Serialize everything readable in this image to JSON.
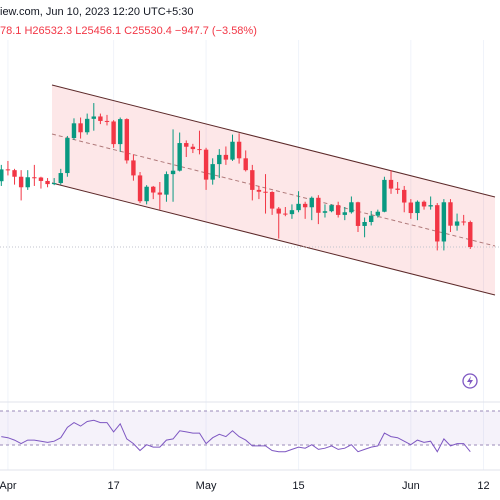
{
  "chart_data": {
    "type": "candlestick",
    "header": "iew.com, Jun 10, 2023 12:20 UTC+5:30",
    "ohlc_legend": "78.1 H26532.3 L25456.1 C25530.4 −947.7 (−3.58%)",
    "up_color": "#089981",
    "down_color": "#f23645",
    "x": [
      1,
      2,
      3,
      4,
      5,
      6,
      7,
      8,
      9,
      10,
      11,
      12,
      13,
      14,
      15,
      16,
      17,
      18,
      19,
      20,
      21,
      22,
      23,
      24,
      25,
      26,
      27,
      28,
      29,
      30,
      31,
      32,
      33,
      34,
      35,
      36,
      37,
      38,
      39,
      40,
      41,
      42,
      43,
      44,
      45,
      46,
      47,
      48,
      49,
      50,
      51,
      52,
      53,
      54,
      55,
      56,
      57,
      58,
      59,
      60,
      61,
      62,
      63,
      64,
      65,
      66,
      67,
      68,
      69,
      70,
      71,
      72
    ],
    "candles": [
      [
        28030,
        28650,
        27850,
        28480
      ],
      [
        28480,
        28800,
        28250,
        28450
      ],
      [
        28450,
        28500,
        27900,
        28200
      ],
      [
        28200,
        28450,
        27300,
        27800
      ],
      [
        27800,
        28450,
        27700,
        28180
      ],
      [
        28180,
        28650,
        27850,
        28170
      ],
      [
        28170,
        28200,
        27750,
        28040
      ],
      [
        28040,
        28150,
        27800,
        27920
      ],
      [
        27920,
        28150,
        27880,
        27960
      ],
      [
        27960,
        28500,
        27900,
        28340
      ],
      [
        28340,
        29750,
        28200,
        29670
      ],
      [
        29670,
        30420,
        29600,
        30230
      ],
      [
        30230,
        30450,
        29650,
        29890
      ],
      [
        29890,
        30600,
        29800,
        30400
      ],
      [
        30400,
        31000,
        29950,
        30490
      ],
      [
        30490,
        30600,
        30200,
        30320
      ],
      [
        30320,
        30550,
        30150,
        30300
      ],
      [
        30300,
        30350,
        29300,
        29440
      ],
      [
        29440,
        30450,
        29150,
        30390
      ],
      [
        30390,
        30420,
        28700,
        28820
      ],
      [
        28820,
        29050,
        28050,
        28250
      ],
      [
        28250,
        28380,
        27200,
        27270
      ],
      [
        27270,
        27880,
        27150,
        27820
      ],
      [
        27820,
        27850,
        27350,
        27600
      ],
      [
        27600,
        28000,
        26950,
        27520
      ],
      [
        27520,
        28400,
        27250,
        28300
      ],
      [
        28300,
        30000,
        27250,
        28430
      ],
      [
        28430,
        29880,
        28400,
        29480
      ],
      [
        29480,
        29580,
        28950,
        29340
      ],
      [
        29340,
        29450,
        29100,
        29250
      ],
      [
        29250,
        29950,
        29050,
        29230
      ],
      [
        29230,
        29300,
        27700,
        28090
      ],
      [
        28090,
        28900,
        27900,
        28680
      ],
      [
        28680,
        29250,
        28150,
        29030
      ],
      [
        29030,
        29350,
        28650,
        28850
      ],
      [
        28850,
        29800,
        28800,
        29530
      ],
      [
        29530,
        29850,
        28700,
        28900
      ],
      [
        28900,
        29200,
        28400,
        28450
      ],
      [
        28450,
        28650,
        27300,
        27700
      ],
      [
        27700,
        27850,
        27350,
        27630
      ],
      [
        27630,
        28300,
        26800,
        27620
      ],
      [
        27620,
        27650,
        26750,
        26990
      ],
      [
        26990,
        27050,
        25850,
        26800
      ],
      [
        26800,
        27050,
        26700,
        26780
      ],
      [
        26780,
        27150,
        26600,
        26930
      ],
      [
        26930,
        27650,
        26850,
        27170
      ],
      [
        27170,
        27250,
        26600,
        27040
      ],
      [
        27040,
        27450,
        26550,
        27400
      ],
      [
        27400,
        27500,
        26400,
        26830
      ],
      [
        26830,
        27150,
        26650,
        26890
      ],
      [
        26890,
        27150,
        26850,
        27120
      ],
      [
        27120,
        27250,
        26650,
        26750
      ],
      [
        26750,
        27050,
        26550,
        26850
      ],
      [
        26850,
        27450,
        26800,
        27230
      ],
      [
        27230,
        27250,
        26100,
        26330
      ],
      [
        26330,
        26650,
        25900,
        26480
      ],
      [
        26480,
        26900,
        26350,
        26720
      ],
      [
        26720,
        26950,
        26650,
        26870
      ],
      [
        26870,
        28200,
        26850,
        28080
      ],
      [
        28080,
        28450,
        27550,
        27750
      ],
      [
        27750,
        28000,
        27550,
        27700
      ],
      [
        27700,
        27850,
        26850,
        27220
      ],
      [
        27220,
        27350,
        26600,
        26820
      ],
      [
        26820,
        27300,
        26550,
        27250
      ],
      [
        27250,
        27300,
        26950,
        27070
      ],
      [
        27070,
        27450,
        26950,
        27120
      ],
      [
        27120,
        27200,
        25400,
        25740
      ],
      [
        25740,
        27350,
        25400,
        27230
      ],
      [
        27230,
        27350,
        26100,
        26340
      ],
      [
        26340,
        26800,
        26150,
        26500
      ],
      [
        26500,
        26750,
        26350,
        26480
      ],
      [
        26478.1,
        26532.3,
        25456.1,
        25530.4
      ]
    ],
    "rsi": {
      "color": "#7e57c2",
      "values": [
        52,
        51,
        49,
        46,
        49,
        49,
        48,
        47,
        48,
        51,
        60,
        64,
        61,
        65,
        66,
        64,
        64,
        56,
        63,
        50,
        46,
        40,
        45,
        43,
        43,
        49,
        50,
        57,
        56,
        55,
        55,
        46,
        51,
        54,
        52,
        57,
        52,
        49,
        44,
        44,
        44,
        40,
        39,
        39,
        41,
        43,
        42,
        45,
        41,
        42,
        44,
        41,
        42,
        45,
        39,
        41,
        43,
        44,
        55,
        52,
        51,
        48,
        45,
        49,
        47,
        48,
        39,
        50,
        44,
        46,
        46,
        39
      ],
      "ylim": [
        25,
        80
      ]
    },
    "xlim": [
      0.8,
      76.5
    ],
    "ylim": [
      19716,
      34156
    ],
    "xticks": [
      {
        "value": 2,
        "label": "Apr"
      },
      {
        "value": 18,
        "label": "17"
      },
      {
        "value": 32,
        "label": "May"
      },
      {
        "value": 46,
        "label": "15"
      },
      {
        "value": 63,
        "label": "Jun"
      },
      {
        "value": 74,
        "label": "12"
      }
    ]
  }
}
